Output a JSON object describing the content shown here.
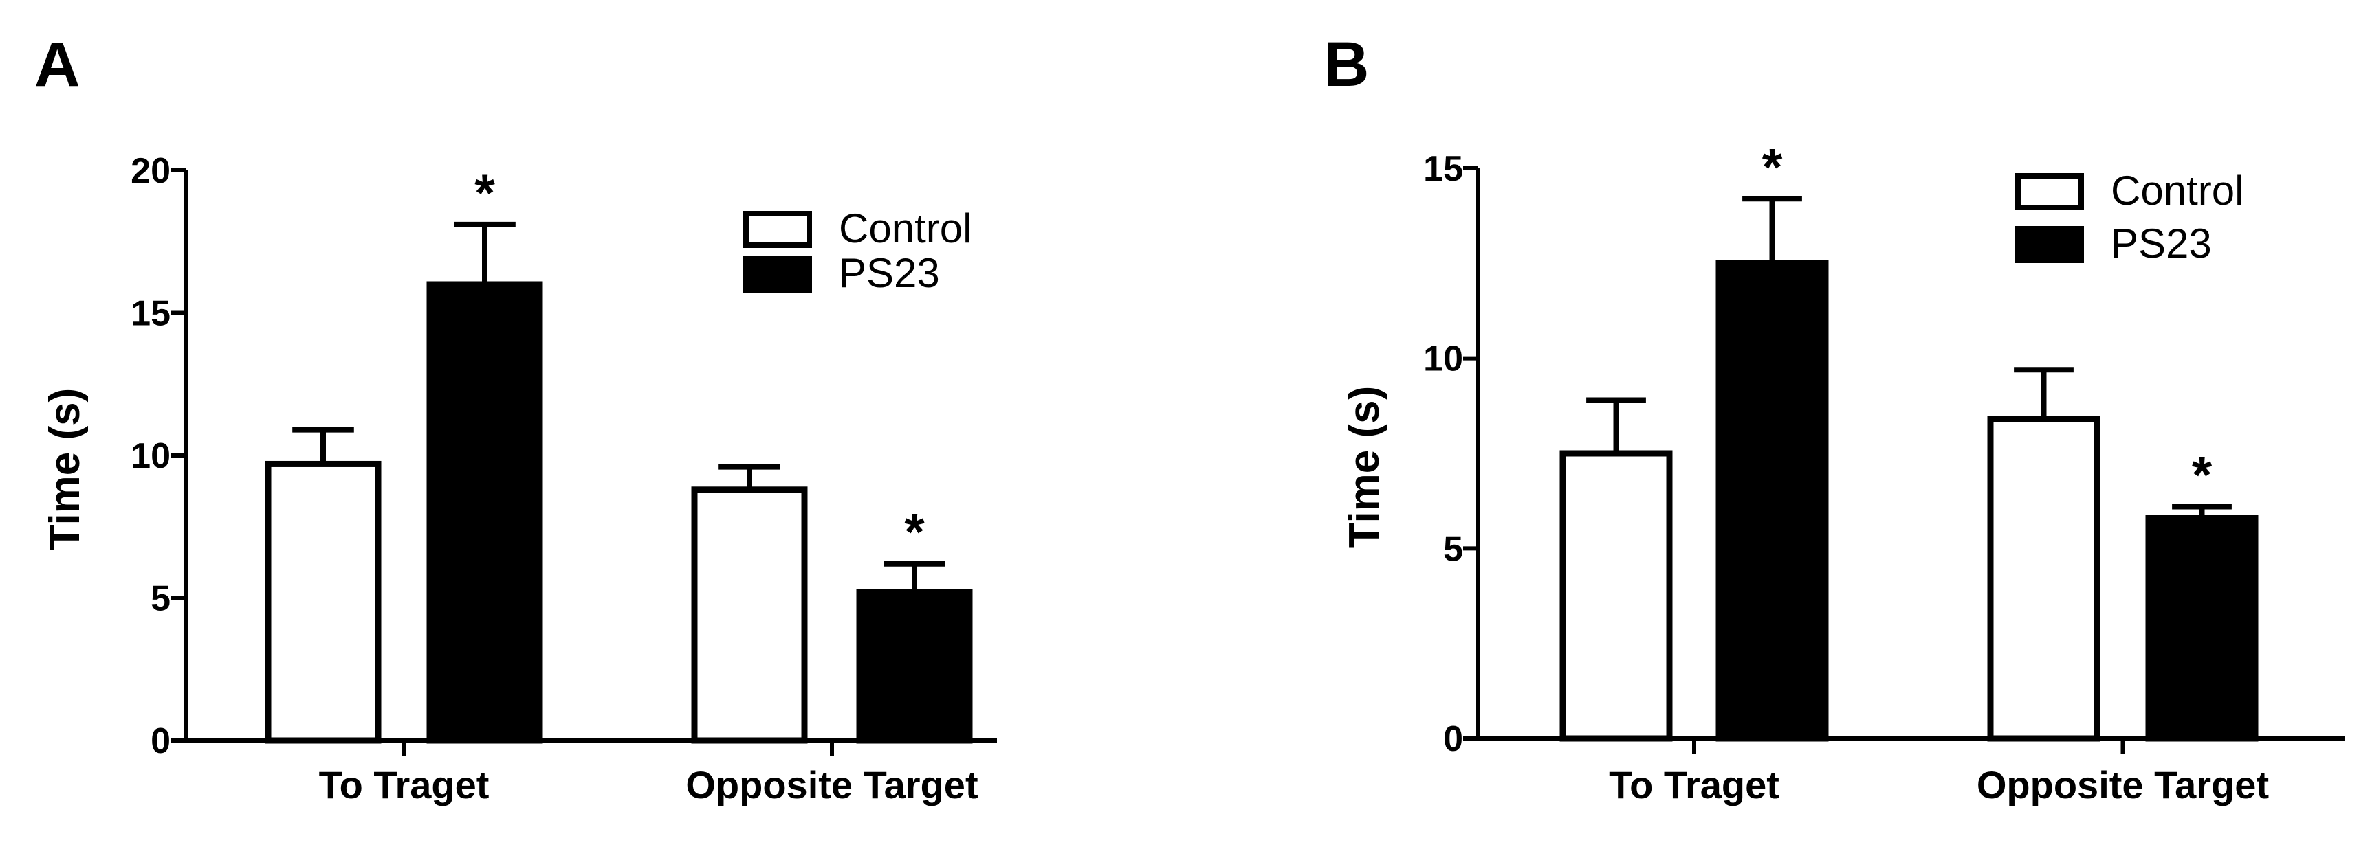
{
  "chart_data": [
    {
      "type": "bar",
      "panel_label": "A",
      "categories": [
        "To Traget",
        "Opposite Target"
      ],
      "series": [
        {
          "name": "Control",
          "values": [
            9.7,
            8.8
          ],
          "errors": [
            1.2,
            0.8
          ],
          "color": "#ffffff"
        },
        {
          "name": "PS23",
          "values": [
            16.0,
            5.2
          ],
          "errors": [
            2.1,
            1.0
          ],
          "color": "#000000"
        }
      ],
      "significance": [
        [
          "",
          "*"
        ],
        [
          "",
          "*"
        ]
      ],
      "ylabel": "Time (s)",
      "ylim": [
        0,
        20
      ],
      "yticks": [
        0,
        5,
        10,
        15,
        20
      ],
      "legend": "top-right",
      "grid": false
    },
    {
      "type": "bar",
      "panel_label": "B",
      "categories": [
        "To Traget",
        "Opposite Target"
      ],
      "series": [
        {
          "name": "Control",
          "values": [
            7.5,
            8.4
          ],
          "errors": [
            1.4,
            1.3
          ],
          "color": "#ffffff"
        },
        {
          "name": "PS23",
          "values": [
            12.5,
            5.8
          ],
          "errors": [
            1.7,
            0.3
          ],
          "color": "#000000"
        }
      ],
      "significance": [
        [
          "",
          "*"
        ],
        [
          "",
          "*"
        ]
      ],
      "ylabel": "Time (s)",
      "ylim": [
        0,
        15
      ],
      "yticks": [
        0,
        5,
        10,
        15
      ],
      "legend": "top-right",
      "grid": false
    }
  ]
}
